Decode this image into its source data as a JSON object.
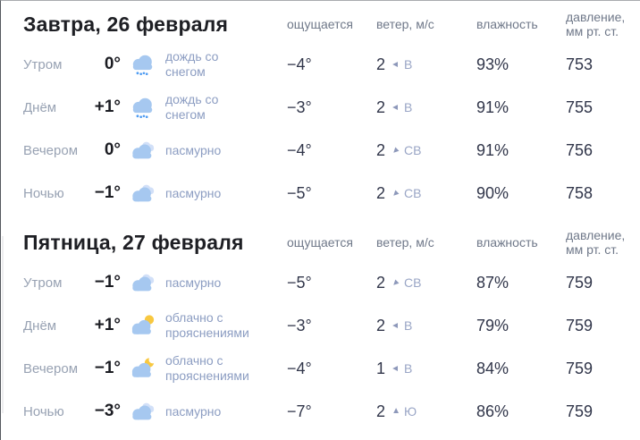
{
  "column_headers": {
    "feels_like": "ощущается",
    "wind": "ветер, м/с",
    "humidity": "влажность",
    "pressure": "давление,\nмм рт. ст."
  },
  "colors": {
    "cloud_front": "#a6c8f0",
    "cloud_back": "#d2e0f8",
    "rain_drop": "#4f9cf2",
    "sun": "#f8c840",
    "moon": "#f8c840",
    "value_text": "#31364a",
    "muted_text": "#98a2b3",
    "description_text": "#8c9dc2",
    "header_text": "#6f7889",
    "title_text": "#1e1f24"
  },
  "sections": [
    {
      "title": "Завтра, 26 февраля",
      "rows": [
        {
          "time": "Утром",
          "temp": "0°",
          "icon": "sleet",
          "desc": "дождь со\nснегом",
          "feels": "−4°",
          "wind_speed": "2",
          "wind_arrow": "left",
          "wind_dir": "В",
          "humidity": "93%",
          "pressure": "753"
        },
        {
          "time": "Днём",
          "temp": "+1°",
          "icon": "sleet",
          "desc": "дождь со\nснегом",
          "feels": "−3°",
          "wind_speed": "2",
          "wind_arrow": "left",
          "wind_dir": "В",
          "humidity": "91%",
          "pressure": "755"
        },
        {
          "time": "Вечером",
          "temp": "0°",
          "icon": "overcast",
          "desc": "пасмурно",
          "feels": "−4°",
          "wind_speed": "2",
          "wind_arrow": "down-left",
          "wind_dir": "СВ",
          "humidity": "91%",
          "pressure": "756"
        },
        {
          "time": "Ночью",
          "temp": "−1°",
          "icon": "overcast",
          "desc": "пасмурно",
          "feels": "−5°",
          "wind_speed": "2",
          "wind_arrow": "down-left",
          "wind_dir": "СВ",
          "humidity": "90%",
          "pressure": "758"
        }
      ]
    },
    {
      "title": "Пятница, 27 февраля",
      "rows": [
        {
          "time": "Утром",
          "temp": "−1°",
          "icon": "overcast",
          "desc": "пасмурно",
          "feels": "−5°",
          "wind_speed": "2",
          "wind_arrow": "down-left",
          "wind_dir": "СВ",
          "humidity": "87%",
          "pressure": "759"
        },
        {
          "time": "Днём",
          "temp": "+1°",
          "icon": "partly-cloudy-sun",
          "desc": "облачно с\nпрояснениями",
          "feels": "−3°",
          "wind_speed": "2",
          "wind_arrow": "left",
          "wind_dir": "В",
          "humidity": "79%",
          "pressure": "759"
        },
        {
          "time": "Вечером",
          "temp": "−1°",
          "icon": "partly-cloudy-moon",
          "desc": "облачно с\nпрояснениями",
          "feels": "−4°",
          "wind_speed": "1",
          "wind_arrow": "left",
          "wind_dir": "В",
          "humidity": "84%",
          "pressure": "759"
        },
        {
          "time": "Ночью",
          "temp": "−3°",
          "icon": "overcast",
          "desc": "пасмурно",
          "feels": "−7°",
          "wind_speed": "2",
          "wind_arrow": "up",
          "wind_dir": "Ю",
          "humidity": "86%",
          "pressure": "759"
        }
      ]
    }
  ]
}
